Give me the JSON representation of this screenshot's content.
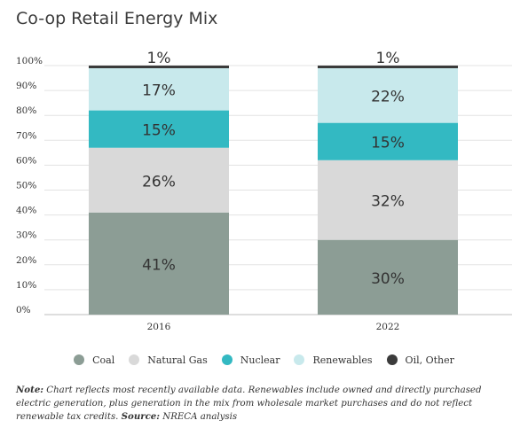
{
  "title": "Co-op Retail Energy Mix",
  "colors": {
    "Coal": "#8c9d95",
    "Natural Gas": "#d9d9d9",
    "Nuclear": "#33b9c2",
    "Renewables": "#c8e9ec",
    "Oil, Other": "#3b3b3b"
  },
  "chart_data": {
    "type": "bar",
    "stacked": true,
    "categories": [
      "2016",
      "2022"
    ],
    "series": [
      {
        "name": "Coal",
        "values": [
          41,
          30
        ],
        "labels": [
          "41%",
          "30%"
        ]
      },
      {
        "name": "Natural Gas",
        "values": [
          26,
          32
        ],
        "labels": [
          "26%",
          "32%"
        ]
      },
      {
        "name": "Nuclear",
        "values": [
          15,
          15
        ],
        "labels": [
          "15%",
          "15%"
        ]
      },
      {
        "name": "Renewables",
        "values": [
          17,
          22
        ],
        "labels": [
          "17%",
          "22%"
        ]
      },
      {
        "name": "Oil, Other",
        "values": [
          1,
          1
        ],
        "labels": [
          "1%",
          "1%"
        ]
      }
    ],
    "ylim": [
      0,
      100
    ],
    "yticks": [
      "0%",
      "10%",
      "20%",
      "30%",
      "40%",
      "50%",
      "60%",
      "70%",
      "80%",
      "90%",
      "100%"
    ],
    "grid": true,
    "legend_position": "bottom"
  },
  "legend": [
    "Coal",
    "Natural Gas",
    "Nuclear",
    "Renewables",
    "Oil, Other"
  ],
  "note": {
    "label": "Note:",
    "text": " Chart reflects most recently available data. Renewables include owned and directly purchased electric generation, plus generation in the mix from wholesale market purchases and do not reflect renewable tax credits. ",
    "source_label": "Source:",
    "source_text": " NRECA analysis"
  }
}
